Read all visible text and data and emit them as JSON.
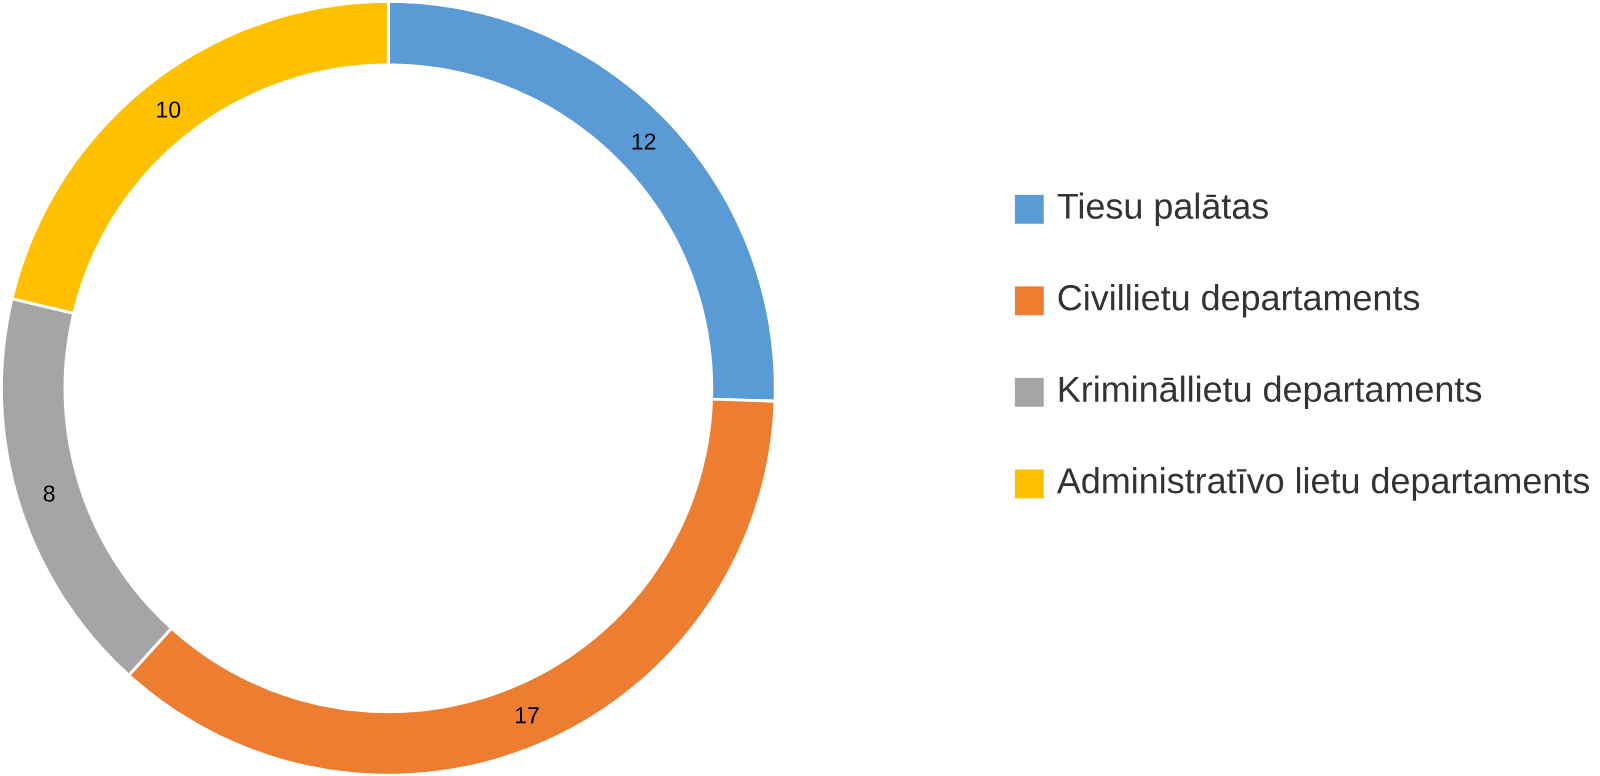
{
  "chart_data": {
    "type": "donut",
    "categories": [
      "Tiesu palātas",
      "Civillietu departaments",
      "Krimināllietu departaments",
      "Administratīvo lietu departaments"
    ],
    "values": [
      12,
      17,
      8,
      10
    ],
    "colors": [
      "#5b9bd5",
      "#ed7d31",
      "#a5a5a5",
      "#ffc000"
    ],
    "data_labels": true,
    "legend": "right"
  }
}
